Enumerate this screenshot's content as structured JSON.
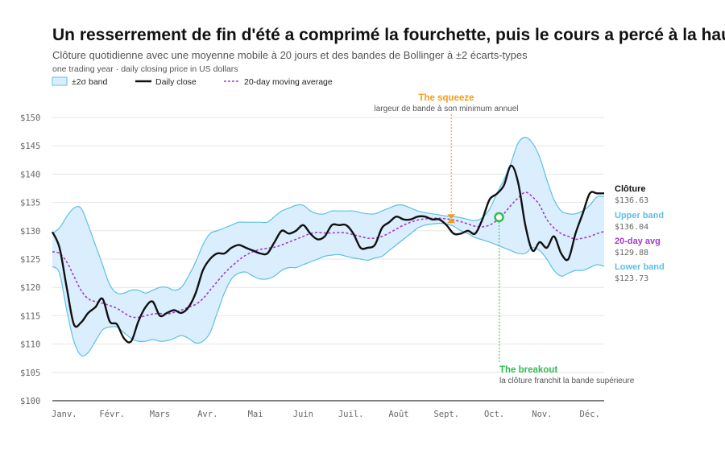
{
  "title": "Un resserrement de fin d'été a comprimé la fourchette, puis le cours a percé à la hausse",
  "subtitle": "Clôture quotidienne avec une moyenne mobile à 20 jours et des bandes de Bollinger à ±2 écarts-types",
  "caption": "one trading year · daily closing price in US dollars",
  "legend": {
    "band": "±2σ band",
    "close": "Daily close",
    "ma": "20-day moving average"
  },
  "colors": {
    "band_fill": "#dbeefe",
    "band_stroke": "#5bc0e8",
    "close": "#111111",
    "ma": "#a23bd0",
    "squeeze": "#f39c12",
    "breakout": "#2ebd4e"
  },
  "annotations": {
    "squeeze": {
      "title": "The squeeze",
      "subtitle": "largeur de bande à son minimum annuel",
      "x": 8.1,
      "y": 132.2
    },
    "breakout": {
      "title": "The breakout",
      "subtitle": "la clôture franchit la bande supérieure",
      "x": 9.1,
      "y": 132.4
    }
  },
  "end_labels": {
    "close": {
      "label": "Clôture",
      "value": "$136.63"
    },
    "upper": {
      "label": "Upper band",
      "value": "$136.04"
    },
    "ma": {
      "label": "20-day avg",
      "value": "$129.88"
    },
    "lower": {
      "label": "Lower band",
      "value": "$123.73"
    }
  },
  "chart_data": {
    "type": "line",
    "title": "Un resserrement de fin d'été a comprimé la fourchette, puis le cours a percé à la hausse",
    "subtitle": "Clôture quotidienne avec une moyenne mobile à 20 jours et des bandes de Bollinger à ±2 écarts-types",
    "xlabel": "",
    "ylabel": "",
    "x_ticks": [
      "Janv.",
      "Févr.",
      "Mars",
      "Avr.",
      "Mai",
      "Juin",
      "Juil.",
      "Août",
      "Sept.",
      "Oct.",
      "Nov.",
      "Déc."
    ],
    "y_ticks": [
      "$100",
      "$105",
      "$110",
      "$115",
      "$120",
      "$125",
      "$130",
      "$135",
      "$140",
      "$145",
      "$150"
    ],
    "xlim": [
      -0.25,
      11.3
    ],
    "ylim": [
      100,
      150
    ],
    "grid": true,
    "legend_position": "top-left",
    "x": [
      -0.25,
      -0.1,
      0.05,
      0.2,
      0.35,
      0.5,
      0.65,
      0.8,
      0.95,
      1.1,
      1.25,
      1.4,
      1.55,
      1.7,
      1.85,
      2.0,
      2.15,
      2.3,
      2.45,
      2.6,
      2.75,
      2.9,
      3.05,
      3.2,
      3.35,
      3.5,
      3.65,
      3.8,
      3.95,
      4.1,
      4.25,
      4.4,
      4.55,
      4.7,
      4.85,
      5.0,
      5.15,
      5.3,
      5.45,
      5.6,
      5.75,
      5.9,
      6.05,
      6.2,
      6.35,
      6.5,
      6.65,
      6.8,
      6.95,
      7.1,
      7.25,
      7.4,
      7.55,
      7.7,
      7.85,
      8.0,
      8.15,
      8.3,
      8.45,
      8.6,
      8.75,
      8.9,
      9.05,
      9.2,
      9.35,
      9.5,
      9.65,
      9.8,
      9.95,
      10.1,
      10.25,
      10.4,
      10.55,
      10.7,
      10.85,
      11.0,
      11.15,
      11.3
    ],
    "series": [
      {
        "name": "Daily close",
        "values": [
          129.8,
          127,
          120,
          113.5,
          113.8,
          115.5,
          116.5,
          118,
          114,
          113.5,
          111,
          110.5,
          114,
          116.5,
          117.5,
          115,
          115.5,
          116,
          115.5,
          116.5,
          119,
          123,
          125,
          126,
          126,
          127,
          127.5,
          127,
          126.5,
          126,
          126,
          128,
          130,
          129.5,
          130,
          131,
          129.5,
          128.5,
          129,
          131,
          131,
          131,
          129.5,
          127,
          127,
          127.5,
          130.5,
          131.5,
          132.5,
          132,
          132,
          132.5,
          132.5,
          132,
          132,
          131,
          129.5,
          129.5,
          130,
          129.5,
          132,
          135.5,
          136.5,
          138,
          141.5,
          138.5,
          131,
          126.5,
          128,
          127,
          129,
          126,
          125,
          129.5,
          133,
          136.6,
          136.6,
          136.6
        ]
      },
      {
        "name": "20-day moving average",
        "values": [
          126.3,
          126,
          124.5,
          122,
          119.5,
          118,
          117.5,
          117.2,
          116.8,
          116.3,
          115.5,
          114.8,
          114.7,
          115,
          115.3,
          115.4,
          115.3,
          115.6,
          116,
          116.5,
          117,
          118,
          119.5,
          121,
          122.5,
          123.7,
          124.8,
          125.7,
          126.3,
          126.7,
          126.9,
          127.1,
          127.5,
          128,
          128.5,
          129,
          129.5,
          129.7,
          129.6,
          129.6,
          129.7,
          129.6,
          129.3,
          129,
          128.7,
          128.7,
          129,
          129.6,
          130.3,
          131,
          131.5,
          131.9,
          132.1,
          132.2,
          132.2,
          132.1,
          131.9,
          131.6,
          131.2,
          130.8,
          130.7,
          131,
          131.8,
          133,
          134.5,
          135.8,
          136.8,
          136,
          134.5,
          132,
          130.5,
          129.5,
          129,
          128.5,
          128.7,
          129,
          129.5,
          129.88
        ]
      },
      {
        "name": "Upper band",
        "values": [
          129.5,
          130.5,
          132.5,
          134,
          134,
          131,
          127.5,
          124,
          120.5,
          119,
          119,
          119.5,
          119.5,
          119,
          119.5,
          120,
          120,
          119.5,
          120,
          122,
          124.5,
          127.5,
          129.5,
          130,
          130.5,
          131,
          131.5,
          131.5,
          131.5,
          131.5,
          131.5,
          132.5,
          133.5,
          134,
          134.5,
          134.5,
          133.5,
          133,
          133,
          133.5,
          133.5,
          133.5,
          133.5,
          133.2,
          133,
          133,
          133.5,
          134,
          134.5,
          134.5,
          134,
          133.5,
          133.2,
          133,
          132.8,
          132.6,
          132.5,
          132.3,
          132,
          131.8,
          132.3,
          133.8,
          136.5,
          139,
          142,
          145.5,
          146.5,
          145.5,
          143,
          139,
          135.5,
          133.5,
          133,
          133,
          133.5,
          134.5,
          136,
          136.04
        ]
      },
      {
        "name": "Lower band",
        "values": [
          123.7,
          122.5,
          116,
          110.5,
          108,
          108.5,
          110.5,
          112.5,
          113,
          113,
          112,
          111,
          110.5,
          110.5,
          110.8,
          110.5,
          110.6,
          111,
          111.5,
          111,
          110.2,
          110.5,
          112,
          115.5,
          119,
          121.5,
          122.5,
          122.7,
          122,
          121.5,
          121.5,
          122,
          123,
          123.5,
          123.5,
          124,
          124.5,
          125,
          125.5,
          125.7,
          125.8,
          125.5,
          125.2,
          125,
          124.8,
          125.2,
          125.5,
          126.5,
          127.5,
          128.5,
          129.5,
          130.5,
          131,
          131.2,
          131.3,
          131.2,
          130.8,
          130,
          129.5,
          128.8,
          128.4,
          128,
          127.5,
          127,
          126.5,
          126,
          126,
          127,
          126.5,
          125,
          123,
          122,
          122.5,
          123,
          123,
          123.5,
          124,
          123.73
        ]
      }
    ]
  }
}
